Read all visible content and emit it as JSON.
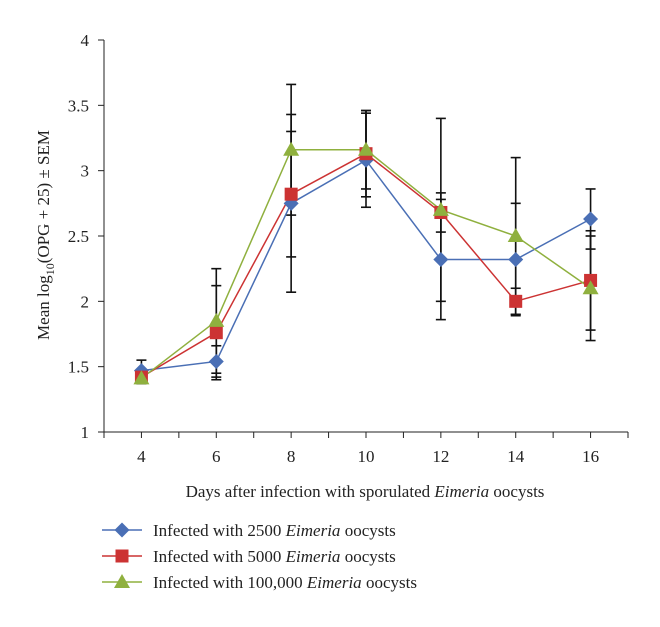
{
  "chart_data": {
    "type": "line",
    "title": "",
    "x": [
      4,
      6,
      8,
      10,
      12,
      14,
      16
    ],
    "xlabel": {
      "prefix": "Days after infection with sporulated ",
      "italic": "Eimeria",
      "suffix": " oocysts"
    },
    "ylabel": {
      "prefix": "Mean log",
      "sub": "10",
      "suffix": "(OPG + 25) ± SEM"
    },
    "xlim": [
      3,
      17
    ],
    "ylim": [
      1,
      4
    ],
    "xticks": [
      "4",
      "6",
      "8",
      "10",
      "12",
      "14",
      "16"
    ],
    "yticks": [
      "1",
      "1.5",
      "2",
      "2.5",
      "3",
      "3.5",
      "4"
    ],
    "grid": false,
    "legend_position": "bottom",
    "series": [
      {
        "name": "Infected with 2500 Eimeria oocysts",
        "legend": {
          "prefix": "Infected with 2500 ",
          "italic": "Eimeria",
          "suffix": " oocysts"
        },
        "color": "#4a6fb5",
        "marker": "diamond",
        "values": [
          1.47,
          1.54,
          2.75,
          3.08,
          2.32,
          2.32,
          2.63
        ],
        "error": [
          0.08,
          0.12,
          0.68,
          0.36,
          0.46,
          0.43,
          0.23
        ]
      },
      {
        "name": "Infected with 5000 Eimeria oocysts",
        "legend": {
          "prefix": "Infected with 5000 ",
          "italic": "Eimeria",
          "suffix": " oocysts"
        },
        "color": "#cc3333",
        "marker": "square",
        "values": [
          1.42,
          1.76,
          2.82,
          3.13,
          2.68,
          2.0,
          2.16
        ],
        "error": [
          0.05,
          0.36,
          0.48,
          0.33,
          0.15,
          0.1,
          0.38
        ]
      },
      {
        "name": "Infected with 100,000 Eimeria oocysts",
        "legend": {
          "prefix": "Infected with 100,000 ",
          "italic": "Eimeria",
          "suffix": " oocysts"
        },
        "color": "#8fb03e",
        "marker": "triangle",
        "values": [
          1.41,
          1.85,
          3.16,
          3.16,
          2.7,
          2.5,
          2.1
        ],
        "error": [
          0.04,
          0.4,
          0.5,
          0.3,
          0.7,
          0.6,
          0.4
        ]
      }
    ]
  }
}
